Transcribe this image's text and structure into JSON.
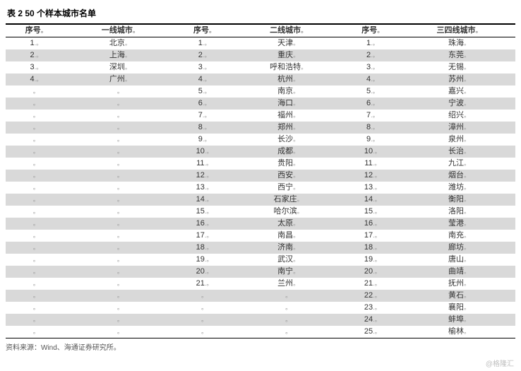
{
  "title": "表 2  50 个样本城市名单",
  "source": "资料来源：Wind、海通证券研究所。",
  "watermark": "@格隆汇",
  "headers": [
    "序号",
    "一线城市",
    "序号",
    "二线城市",
    "序号",
    "三四线城市"
  ],
  "rows": [
    [
      "1",
      "北京",
      "1",
      "天津",
      "1",
      "珠海"
    ],
    [
      "2",
      "上海",
      "2",
      "重庆",
      "2",
      "东莞"
    ],
    [
      "3",
      "深圳",
      "3",
      "呼和浩特",
      "3",
      "无锡"
    ],
    [
      "4",
      "广州",
      "4",
      "杭州",
      "4",
      "苏州"
    ],
    [
      "",
      "",
      "5",
      "南京",
      "5",
      "嘉兴"
    ],
    [
      "",
      "",
      "6",
      "海口",
      "6",
      "宁波"
    ],
    [
      "",
      "",
      "7",
      "福州",
      "7",
      "绍兴"
    ],
    [
      "",
      "",
      "8",
      "郑州",
      "8",
      "漳州"
    ],
    [
      "",
      "",
      "9",
      "长沙",
      "9",
      "泉州"
    ],
    [
      "",
      "",
      "10",
      "成都",
      "10",
      "长治"
    ],
    [
      "",
      "",
      "11",
      "贵阳",
      "11",
      "九江"
    ],
    [
      "",
      "",
      "12",
      "西安",
      "12",
      "烟台"
    ],
    [
      "",
      "",
      "13",
      "西宁",
      "13",
      "潍坊"
    ],
    [
      "",
      "",
      "14",
      "石家庄",
      "14",
      "衡阳"
    ],
    [
      "",
      "",
      "15",
      "哈尔滨",
      "15",
      "洛阳"
    ],
    [
      "",
      "",
      "16",
      "太原",
      "16",
      "莹港"
    ],
    [
      "",
      "",
      "17",
      "南昌",
      "17",
      "南充"
    ],
    [
      "",
      "",
      "18",
      "济南",
      "18",
      "廊坊"
    ],
    [
      "",
      "",
      "19",
      "武汉",
      "19",
      "唐山"
    ],
    [
      "",
      "",
      "20",
      "南宁",
      "20",
      "曲靖"
    ],
    [
      "",
      "",
      "21",
      "兰州",
      "21",
      "抚州"
    ],
    [
      "",
      "",
      "",
      "",
      "22",
      "黄石"
    ],
    [
      "",
      "",
      "",
      "",
      "23",
      "襄阳"
    ],
    [
      "",
      "",
      "",
      "",
      "24",
      "蚌埠"
    ],
    [
      "",
      "",
      "",
      "",
      "25",
      "榆林"
    ]
  ],
  "colors": {
    "alt_bg": "#d9d9d9",
    "text": "#333333",
    "border": "#000000"
  },
  "col_widths_pct": [
    12,
    21,
    12,
    21,
    12,
    22
  ]
}
